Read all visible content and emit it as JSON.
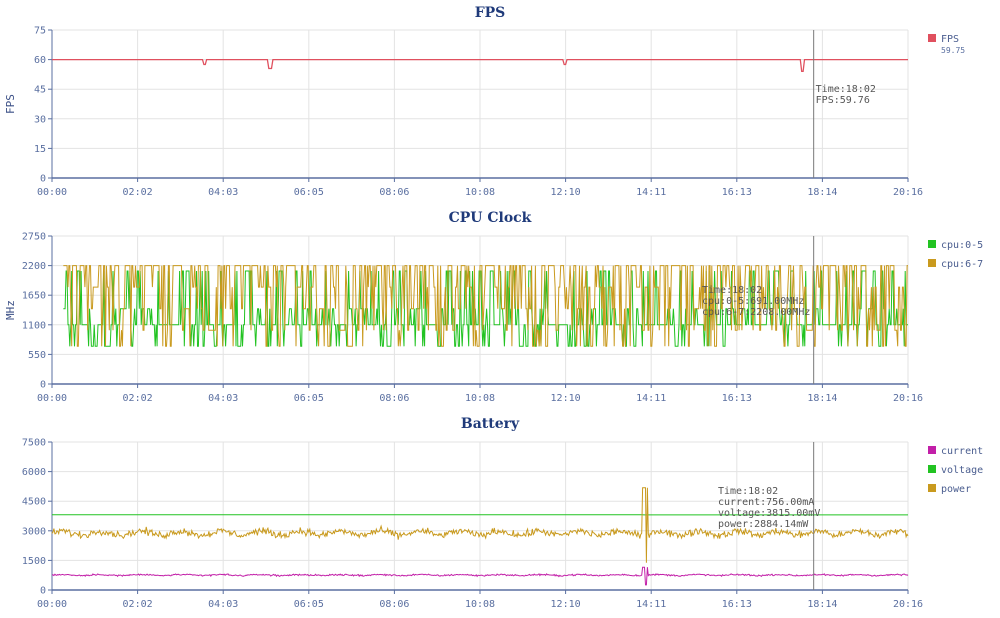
{
  "x_tick_labels": [
    "00:00",
    "02:02",
    "04:03",
    "06:05",
    "08:06",
    "10:08",
    "12:10",
    "14:11",
    "16:13",
    "18:14",
    "20:16"
  ],
  "cursor_time": "18:02",
  "chart_data": [
    {
      "type": "line",
      "title": "FPS",
      "ylabel": "FPS",
      "ylim": [
        0,
        75
      ],
      "yticks": [
        "0",
        "15",
        "30",
        "45",
        "60",
        "75"
      ],
      "xlim_seconds": [
        0,
        1216
      ],
      "grid": true,
      "legend_position": "right",
      "series": [
        {
          "name": "FPS",
          "legend_sub": "59.75",
          "color": "#e0505e",
          "baseline": 60,
          "dips": [
            {
              "x": 217,
              "y": 57.5
            },
            {
              "x": 310,
              "y": 55.5
            },
            {
              "x": 728,
              "y": 57.5
            },
            {
              "x": 1066,
              "y": 54
            }
          ]
        }
      ],
      "tooltip": {
        "lines": [
          "Time:18:02",
          "FPS:59.76"
        ]
      }
    },
    {
      "type": "line",
      "title": "CPU Clock",
      "ylabel": "MHz",
      "ylim": [
        0,
        2750
      ],
      "yticks": [
        "0",
        "550",
        "1100",
        "1650",
        "2200",
        "2750"
      ],
      "xlim_seconds": [
        0,
        1216
      ],
      "grid": true,
      "legend_position": "right",
      "series": [
        {
          "name": "cpu:0-5",
          "color": "#22c322",
          "levels": [
            700,
            1100,
            1400,
            2100
          ],
          "typical": 1100
        },
        {
          "name": "cpu:6-7",
          "color": "#c99a1e",
          "levels": [
            700,
            1000,
            1400,
            1800,
            2200
          ],
          "typical": 2200
        }
      ],
      "tooltip": {
        "lines": [
          "Time:18:02",
          "cpu:0-5:691.00MHz",
          "cpu:6-7:2208.00MHz"
        ]
      }
    },
    {
      "type": "line",
      "title": "Battery",
      "ylabel": "",
      "ylim": [
        0,
        7500
      ],
      "yticks": [
        "0",
        "1500",
        "3000",
        "4500",
        "6000",
        "7500"
      ],
      "xlim_seconds": [
        0,
        1216
      ],
      "grid": true,
      "legend_position": "right",
      "series": [
        {
          "name": "current",
          "color": "#c21fa8",
          "mean": 756
        },
        {
          "name": "voltage",
          "color": "#22c322",
          "mean": 3815
        },
        {
          "name": "power",
          "color": "#c99a1e",
          "mean": 2884
        }
      ],
      "tooltip": {
        "lines": [
          "Time:18:02",
          "current:756.00mA",
          "voltage:3815.00mV",
          "power:2884.14mW"
        ]
      }
    }
  ]
}
